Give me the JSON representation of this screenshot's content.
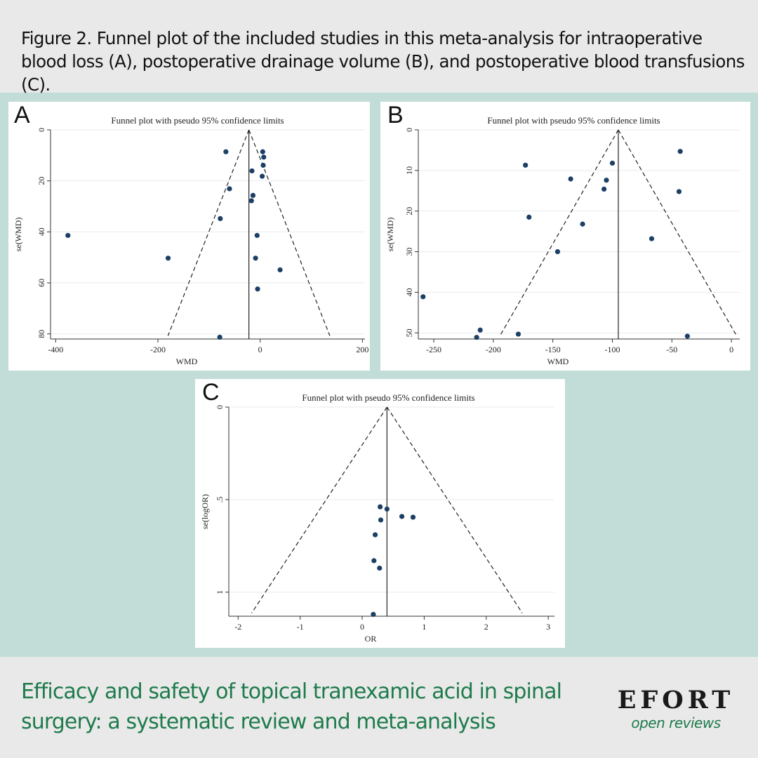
{
  "caption": "Figure 2. Funnel plot of the included studies in this meta-analysis for intraoperative blood loss (A), postoperative drainage volume (B), and postoperative blood transfusions (C).",
  "journal_title": "Efficacy and safety of topical tranexamic acid in spinal surgery: a systematic review and meta-analysis",
  "logo": {
    "word": "EFORT",
    "sub": "open reviews"
  },
  "colors": {
    "background": "#c2ddd7",
    "band": "#e9e9e9",
    "title_green": "#1e7b4b",
    "point": "#1c3f66"
  },
  "chart_data": [
    {
      "panel": "A",
      "type": "scatter",
      "title": "Funnel plot with pseudo 95% confidence limits",
      "xlabel": "WMD",
      "ylabel": "se(WMD)",
      "xlim": [
        -410,
        205
      ],
      "ylim": [
        0,
        82
      ],
      "y_reversed": true,
      "xticks": [
        -400,
        -200,
        0,
        200
      ],
      "yticks": [
        0,
        20,
        40,
        60,
        80
      ],
      "grid": true,
      "pooled": -22,
      "limits_slope": 1.96,
      "points": [
        {
          "x": -67,
          "y": 8.6
        },
        {
          "x": 5,
          "y": 8.6
        },
        {
          "x": 7,
          "y": 10.7
        },
        {
          "x": 6,
          "y": 13.9
        },
        {
          "x": -16,
          "y": 16.1
        },
        {
          "x": 4,
          "y": 18.2
        },
        {
          "x": -60,
          "y": 23.1
        },
        {
          "x": -14,
          "y": 25.7
        },
        {
          "x": -17,
          "y": 27.8
        },
        {
          "x": -78,
          "y": 34.8
        },
        {
          "x": -6,
          "y": 41.4
        },
        {
          "x": -376,
          "y": 41.4
        },
        {
          "x": -180,
          "y": 50.3
        },
        {
          "x": -9,
          "y": 50.3
        },
        {
          "x": 39,
          "y": 54.9
        },
        {
          "x": -5,
          "y": 62.4
        },
        {
          "x": -79,
          "y": 81.3
        }
      ]
    },
    {
      "panel": "B",
      "type": "scatter",
      "title": "Funnel plot with pseudo 95% confidence limits",
      "xlabel": "WMD",
      "ylabel": "se(WMD)",
      "xlim": [
        -263,
        7
      ],
      "ylim": [
        0,
        51.5
      ],
      "y_reversed": true,
      "xticks": [
        -250,
        -200,
        -150,
        -100,
        -50,
        0
      ],
      "yticks": [
        0,
        10,
        20,
        30,
        40,
        50
      ],
      "grid": true,
      "pooled": -95,
      "limits_slope": 1.96,
      "points": [
        {
          "x": -43,
          "y": 5.3
        },
        {
          "x": -100,
          "y": 8.2
        },
        {
          "x": -173,
          "y": 8.7
        },
        {
          "x": -135,
          "y": 12.1
        },
        {
          "x": -105,
          "y": 12.4
        },
        {
          "x": -107,
          "y": 14.6
        },
        {
          "x": -44,
          "y": 15.2
        },
        {
          "x": -170,
          "y": 21.5
        },
        {
          "x": -125,
          "y": 23.2
        },
        {
          "x": -67,
          "y": 26.8
        },
        {
          "x": -146,
          "y": 30.0
        },
        {
          "x": -259,
          "y": 41.1
        },
        {
          "x": -211,
          "y": 49.3
        },
        {
          "x": -179,
          "y": 50.3
        },
        {
          "x": -214,
          "y": 51.1
        },
        {
          "x": -37,
          "y": 50.8
        }
      ]
    },
    {
      "panel": "C",
      "type": "scatter",
      "title": "Funnel plot with pseudo 95% confidence limits",
      "xlabel": "OR",
      "ylabel": "se(logOR)",
      "xlim": [
        -2.15,
        3.1
      ],
      "ylim": [
        0,
        1.13
      ],
      "y_reversed": true,
      "xticks": [
        -2,
        -1,
        0,
        1,
        2,
        3
      ],
      "yticks": [
        0,
        0.5,
        1
      ],
      "ytick_labels": [
        "0",
        ".5",
        "1"
      ],
      "grid": true,
      "pooled": 0.4,
      "limits_slope": 1.96,
      "points": [
        {
          "x": 0.29,
          "y": 0.539
        },
        {
          "x": 0.4,
          "y": 0.551
        },
        {
          "x": 0.64,
          "y": 0.591
        },
        {
          "x": 0.82,
          "y": 0.595
        },
        {
          "x": 0.3,
          "y": 0.61
        },
        {
          "x": 0.21,
          "y": 0.69
        },
        {
          "x": 0.19,
          "y": 0.83
        },
        {
          "x": 0.28,
          "y": 0.87
        },
        {
          "x": 0.18,
          "y": 1.12
        }
      ]
    }
  ]
}
